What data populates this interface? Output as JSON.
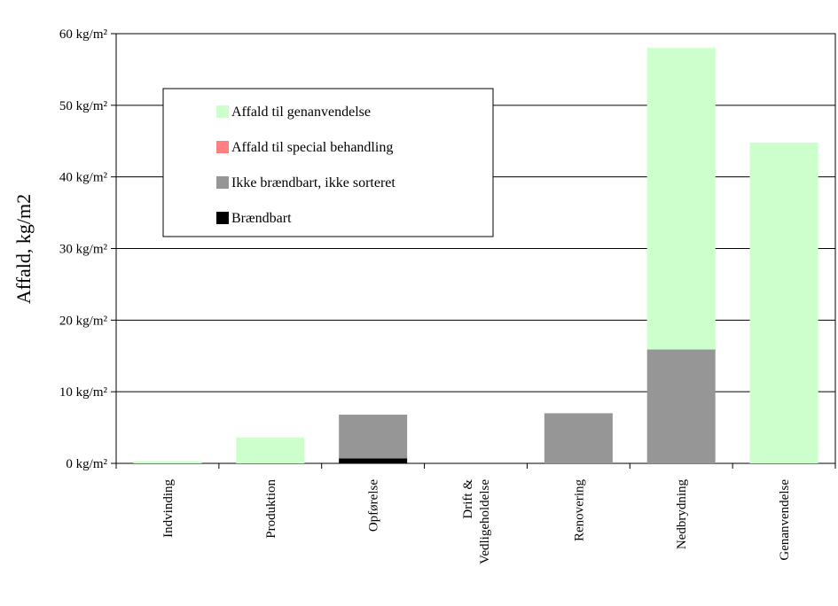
{
  "chart_data": {
    "type": "bar",
    "stacked": true,
    "title": "",
    "xlabel": "",
    "ylabel": "Affald, kg/m2",
    "ylim": [
      0,
      60
    ],
    "y_ticks": [
      0,
      10,
      20,
      30,
      40,
      50,
      60
    ],
    "y_tick_labels": [
      "0 kg/m²",
      "10 kg/m²",
      "20 kg/m²",
      "30 kg/m²",
      "40 kg/m²",
      "50 kg/m²",
      "60 kg/m²"
    ],
    "categories": [
      [
        "Indvinding"
      ],
      [
        "Produktion"
      ],
      [
        "Opførelse"
      ],
      [
        "Drift &",
        "Vedligeholdelse"
      ],
      [
        "Renovering"
      ],
      [
        "Nedbrydning"
      ],
      [
        "Genanvendelse"
      ]
    ],
    "series": [
      {
        "name": "Brændbart",
        "color": "#000000",
        "values": [
          0,
          0,
          0.7,
          0,
          0,
          0,
          0
        ]
      },
      {
        "name": "Ikke brændbart, ikke sorteret",
        "color": "#969696",
        "values": [
          0,
          0,
          6.1,
          0,
          7.0,
          15.9,
          0
        ]
      },
      {
        "name": "Affald til special behandling",
        "color": "#ff8080",
        "values": [
          0,
          0,
          0,
          0,
          0,
          0,
          0
        ]
      },
      {
        "name": "Affald til genanvendelse",
        "color": "#ccffcc",
        "values": [
          0.3,
          3.6,
          0,
          0,
          0,
          42.1,
          44.8
        ]
      }
    ],
    "legend_order": [
      "Affald til genanvendelse",
      "Affald til special behandling",
      "Ikke brændbart, ikke sorteret",
      "Brændbart"
    ],
    "legend": "top-left",
    "grid": true
  }
}
